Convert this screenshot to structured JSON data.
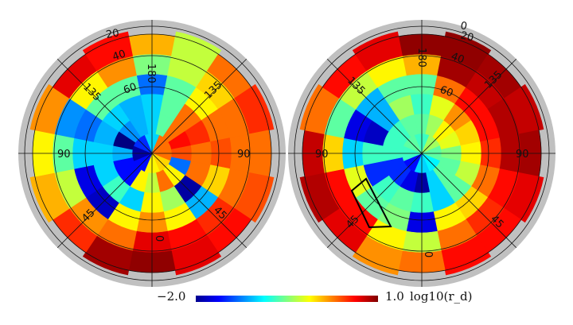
{
  "chart_data": {
    "type": "heatmap",
    "projection": "polar",
    "colormap": "jet",
    "colorbar": {
      "min": -2.0,
      "max": 1.0,
      "min_label": "−2.0",
      "max_label": "1.0",
      "quantity_label": "log10(r_d)"
    },
    "ring_latitude_labels": [
      "0",
      "20",
      "40",
      "60"
    ],
    "longitude_labels": [
      "180",
      "135",
      "135",
      "90",
      "90",
      "45",
      "45",
      "0"
    ],
    "sector_order": "clockwise from top (longitude 180)",
    "maps": [
      {
        "name": "left",
        "rings": [
          [
            -1.0,
            0.3,
            0.3,
            0.0,
            -0.1,
            -1.6,
            -1.9,
            -1.5
          ],
          [
            -1.0,
            -0.6,
            0.3,
            0.6,
            0.4,
            -1.3,
            -0.1,
            0.3,
            -0.3,
            -0.1,
            -1.6,
            -1.6,
            -1.1,
            -2.0,
            -1.2,
            -1.1
          ],
          [
            -1.0,
            -0.6,
            0.3,
            0.5,
            0.3,
            0.3,
            -1.9,
            -0.4,
            -0.1,
            -1.0,
            -0.7,
            -1.0,
            -1.0,
            -1.1,
            -1.0,
            -1.1
          ],
          [
            -1.3,
            -0.6,
            -0.1,
            0.3,
            0.4,
            0.0,
            -1.1,
            -0.1,
            0.2,
            -0.1,
            -1.8,
            -1.7,
            -1.0,
            -1.3,
            -0.6,
            -0.6
          ],
          [
            -0.5,
            -0.3,
            0.0,
            0.3,
            0.3,
            0.3,
            0.5,
            0.6,
            0.7,
            0.3,
            0.2,
            -0.3,
            -0.6,
            -1.2,
            -0.1,
            0.2
          ],
          [
            0.1,
            -0.3,
            0.3,
            0.5,
            0.3,
            0.4,
            0.6,
            0.7,
            0.95,
            0.9,
            0.5,
            0.1,
            -0.1,
            0.2,
            0.7,
            0.6
          ]
        ],
        "labels": {
          "lat20": "20",
          "lat40": "40",
          "lat60": "60",
          "lon180": "180",
          "lon135a": "135",
          "lon135b": "135",
          "lon90a": "90",
          "lon90b": "90",
          "lon45a": "45",
          "lon45b": "45",
          "lon0": "0"
        }
      },
      {
        "name": "right",
        "rings": [
          [
            -0.7,
            -0.4,
            -0.6,
            -0.9,
            -1.0,
            -1.6,
            -0.7,
            -0.6
          ],
          [
            -0.6,
            -0.4,
            -0.1,
            -0.2,
            -0.5,
            -0.6,
            -0.6,
            -1.0,
            -1.9,
            -1.7,
            -1.5,
            -1.5,
            -0.7,
            -0.7,
            -0.7,
            -0.6
          ],
          [
            -0.7,
            -0.2,
            0.2,
            0.0,
            -0.1,
            -0.3,
            -0.6,
            -1.0,
            -0.7,
            -0.6,
            -0.7,
            -1.5,
            -0.7,
            -1.8,
            -1.1,
            -0.4
          ],
          [
            -0.6,
            0.3,
            0.6,
            0.6,
            0.5,
            0.3,
            0.0,
            -0.1,
            -1.7,
            -0.5,
            -0.6,
            -0.2,
            -1.0,
            -1.7,
            -1.1,
            -0.6
          ],
          [
            0.1,
            0.9,
            0.8,
            0.85,
            0.85,
            0.6,
            0.5,
            0.3,
            -0.3,
            -0.1,
            0.6,
            0.6,
            0.0,
            -0.6,
            -0.3,
            -0.1
          ],
          [
            0.95,
            0.95,
            0.9,
            0.8,
            0.9,
            0.7,
            0.6,
            0.6,
            0.3,
            0.2,
            0.7,
            0.85,
            0.8,
            0.3,
            0.6,
            0.7
          ]
        ],
        "labels": {
          "lat0": "0",
          "lat20": "20",
          "lat40": "40",
          "lat60": "60",
          "lon180": "180",
          "lon135a": "135",
          "lon135b": "135",
          "lon90a": "90",
          "lon90b": "90",
          "lon45a": "45",
          "lon45b": "45",
          "lon0": "0"
        }
      }
    ]
  }
}
